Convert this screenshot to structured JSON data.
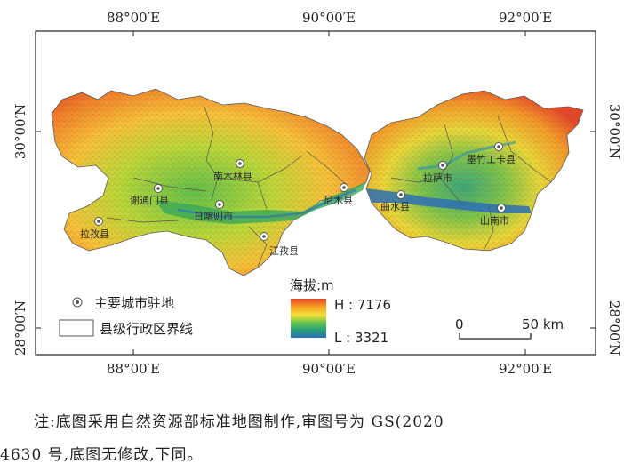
{
  "axes": {
    "top": [
      "88°00′E",
      "90°00′E",
      "92°00′E"
    ],
    "bottom": [
      "88°00′E",
      "90°00′E",
      "92°00′E"
    ],
    "left": [
      "30°00′N",
      "28°00′N"
    ],
    "right": [
      "30°00′N",
      "28°00′N"
    ]
  },
  "cities": [
    {
      "name": "南木林县"
    },
    {
      "name": "谢通门县"
    },
    {
      "name": "日喀则市"
    },
    {
      "name": "拉孜县"
    },
    {
      "name": "江孜县"
    },
    {
      "name": "尼木县"
    },
    {
      "name": "曲水县"
    },
    {
      "name": "拉萨市"
    },
    {
      "name": "墨竹工卡县"
    },
    {
      "name": "山南市"
    }
  ],
  "legend": {
    "city_label": "主要城市驻地",
    "boundary_label": "县级行政区界线",
    "elevation_title": "海拔:m",
    "high_label": "H : 7176",
    "low_label": "L : 3321",
    "colors": [
      "#e8432a",
      "#f5a623",
      "#f4e13a",
      "#63c24a",
      "#27a07a",
      "#2d6fb5"
    ]
  },
  "scale": {
    "zero": "0",
    "distance": "50 km"
  },
  "note": {
    "line1": "注:底图采用自然资源部标准地图制作,审图号为 GS(2020",
    "line2": "4630 号,底图无修改,下同。"
  }
}
